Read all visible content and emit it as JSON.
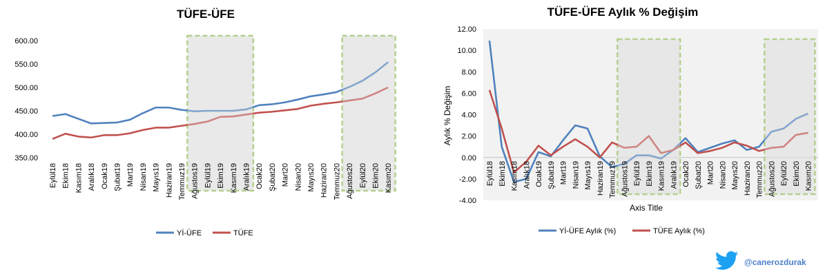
{
  "chart_data": [
    {
      "type": "line",
      "title": "TÜFE-ÜFE",
      "xlabel": "",
      "ylabel": "",
      "ylim": [
        350,
        600
      ],
      "yticks": [
        "350.00",
        "400.00",
        "450.00",
        "500.00",
        "550.00",
        "600.00"
      ],
      "categories": [
        "Eylül18",
        "Ekim18",
        "Kasım18",
        "Aralık18",
        "Ocak19",
        "Şubat19",
        "Mart19",
        "Nisan19",
        "Mayıs19",
        "Haziran19",
        "Temmuz19",
        "Ağustos19",
        "Eylül19",
        "Ekim19",
        "Kasım19",
        "Aralık19",
        "Ocak20",
        "Şubat20",
        "Mart20",
        "Nisan20",
        "Mayıs20",
        "Haziran20",
        "Temmuz20",
        "Ağustos20",
        "Eylül20",
        "Ekim20",
        "Kasım20"
      ],
      "series": [
        {
          "name": "Yİ-ÜFE",
          "color": "#4f81bd",
          "values": [
            439,
            443,
            433,
            423,
            424,
            425,
            431,
            445,
            457,
            457,
            452,
            449,
            450,
            450,
            450,
            453,
            462,
            464,
            468,
            474,
            481,
            485,
            490,
            501,
            514,
            532,
            554
          ]
        },
        {
          "name": "TÜFE",
          "color": "#c0504d",
          "values": [
            390,
            401,
            395,
            393,
            398,
            398,
            402,
            409,
            414,
            414,
            418,
            422,
            427,
            437,
            438,
            442,
            446,
            448,
            451,
            454,
            461,
            465,
            468,
            472,
            476,
            487,
            500
          ]
        }
      ],
      "highlight_ranges": [
        [
          11,
          15
        ],
        [
          23,
          26
        ]
      ],
      "legend": "bottom"
    },
    {
      "type": "line",
      "title": "TÜFE-ÜFE Aylık % Değişim",
      "xlabel": "Axis Title",
      "ylabel": "Aylık  %  Değişim",
      "ylim": [
        -4,
        12
      ],
      "yticks": [
        "-4.00",
        "-2.00",
        "0.00",
        "2.00",
        "4.00",
        "6.00",
        "8.00",
        "10.00",
        "12.00"
      ],
      "categories": [
        "Eylül18",
        "Ekim18",
        "Kasım18",
        "Aralık18",
        "Ocak19",
        "Şubat19",
        "Mart19",
        "Nisan19",
        "Mayıs19",
        "Haziran19",
        "Temmuz19",
        "Ağustos19",
        "Eylül19",
        "Ekim19",
        "Kasım19",
        "Aralık19",
        "Ocak20",
        "Şubat20",
        "Mart20",
        "Nisan20",
        "Mayıs20",
        "Haziran20",
        "Temmuz20",
        "Ağustos20",
        "Eylül20",
        "Ekim20",
        "Kasım20"
      ],
      "series": [
        {
          "name": "Yİ-ÜFE Aylık (%)",
          "color": "#4f81bd",
          "values": [
            10.9,
            1.0,
            -2.3,
            -2.0,
            0.5,
            0.1,
            1.6,
            3.0,
            2.7,
            0.1,
            -0.9,
            -0.6,
            0.2,
            0.2,
            -0.1,
            0.7,
            1.8,
            0.5,
            0.9,
            1.3,
            1.6,
            0.7,
            1.0,
            2.4,
            2.7,
            3.6,
            4.1
          ]
        },
        {
          "name": "TÜFE Aylık (%)",
          "color": "#c0504d",
          "values": [
            6.3,
            2.7,
            -1.4,
            -0.4,
            1.1,
            0.2,
            1.0,
            1.7,
            1.0,
            0.0,
            1.4,
            0.9,
            1.0,
            2.0,
            0.4,
            0.7,
            1.4,
            0.4,
            0.6,
            0.9,
            1.4,
            1.1,
            0.6,
            0.9,
            1.0,
            2.1,
            2.3
          ]
        }
      ],
      "highlight_ranges": [
        [
          11,
          15
        ],
        [
          23,
          26
        ]
      ],
      "legend": "bottom"
    }
  ],
  "watermark": {
    "icon": "twitter-bird-icon",
    "handle": "@canerozdurak",
    "color": "#1da1f2"
  }
}
